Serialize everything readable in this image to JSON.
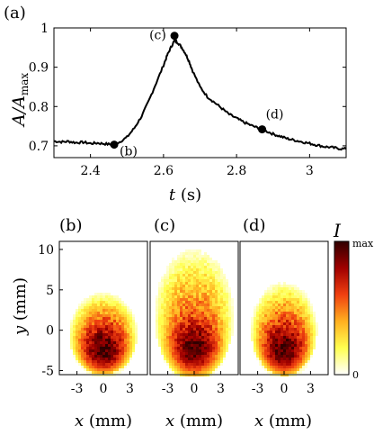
{
  "chart_data": [
    {
      "type": "line",
      "panel_label": "(a)",
      "ylabel": "A/A",
      "ylabel_sub": "max",
      "xlabel_var": "t",
      "xlabel_unit": "(s)",
      "xlim": [
        2.3,
        3.1
      ],
      "ylim": [
        0.67,
        1.0
      ],
      "x_ticks": [
        2.4,
        2.6,
        2.8,
        3.0
      ],
      "x_tick_labels": [
        "2.4",
        "2.6",
        "2.8",
        "3"
      ],
      "y_ticks": [
        0.7,
        0.8,
        0.9,
        1.0
      ],
      "y_tick_labels": [
        "0.7",
        "0.8",
        "0.9",
        "1"
      ],
      "grid": false,
      "series": [
        {
          "x": [
            2.3,
            2.32,
            2.34,
            2.36,
            2.38,
            2.4,
            2.42,
            2.44,
            2.46,
            2.48,
            2.5,
            2.52,
            2.54,
            2.56,
            2.58,
            2.6,
            2.61,
            2.62,
            2.63,
            2.64,
            2.65,
            2.66,
            2.67,
            2.68,
            2.7,
            2.72,
            2.74,
            2.76,
            2.78,
            2.8,
            2.82,
            2.84,
            2.86,
            2.88,
            2.9,
            2.92,
            2.94,
            2.96,
            2.98,
            3.0,
            3.02,
            3.04,
            3.06,
            3.08,
            3.1
          ],
          "values": [
            0.712,
            0.71,
            0.711,
            0.708,
            0.709,
            0.706,
            0.707,
            0.705,
            0.703,
            0.71,
            0.722,
            0.745,
            0.775,
            0.815,
            0.86,
            0.905,
            0.93,
            0.95,
            0.968,
            0.962,
            0.95,
            0.935,
            0.915,
            0.89,
            0.85,
            0.825,
            0.81,
            0.795,
            0.78,
            0.77,
            0.76,
            0.752,
            0.745,
            0.738,
            0.73,
            0.724,
            0.718,
            0.714,
            0.71,
            0.706,
            0.702,
            0.698,
            0.696,
            0.693,
            0.692
          ]
        }
      ],
      "markers": [
        {
          "label": "(b)",
          "x": 2.465,
          "y": 0.703
        },
        {
          "label": "(c)",
          "x": 2.63,
          "y": 0.98
        },
        {
          "label": "(d)",
          "x": 2.87,
          "y": 0.742
        }
      ]
    },
    {
      "type": "heatmap",
      "panel_label": "(b)",
      "xlabel_var": "x",
      "xlabel_unit": "(mm)",
      "ylabel_var": "y",
      "ylabel_unit": "(mm)",
      "xlim": [
        -5,
        5
      ],
      "ylim": [
        -5.5,
        11
      ],
      "x_ticks": [
        -3,
        0,
        3
      ],
      "x_tick_labels": [
        "-3",
        "0",
        "3"
      ],
      "y_ticks": [
        -5,
        0,
        5,
        10
      ],
      "y_tick_labels": [
        "-5",
        "0",
        "5",
        "10"
      ],
      "blob": {
        "center_x": 0,
        "center_y": -0.3,
        "half_width": 3.9,
        "half_height": 5.2,
        "peak_x": 0,
        "peak_y": -3.3,
        "peak_intensity": 0.85
      }
    },
    {
      "type": "heatmap",
      "panel_label": "(c)",
      "xlabel_var": "x",
      "xlabel_unit": "(mm)",
      "xlim": [
        -5,
        5
      ],
      "ylim": [
        -5.5,
        11
      ],
      "x_ticks": [
        -3,
        0,
        3
      ],
      "x_tick_labels": [
        "-3",
        "0",
        "3"
      ],
      "blob": {
        "center_x": 0,
        "center_y": 2.2,
        "half_width": 4.6,
        "half_height": 8.4,
        "peak_x": 0,
        "peak_y": -2.8,
        "peak_intensity": 0.95
      }
    },
    {
      "type": "heatmap",
      "panel_label": "(d)",
      "xlabel_var": "x",
      "xlabel_unit": "(mm)",
      "xlim": [
        -5,
        5
      ],
      "ylim": [
        -5.5,
        11
      ],
      "x_ticks": [
        -3,
        0,
        3
      ],
      "x_tick_labels": [
        "-3",
        "0",
        "3"
      ],
      "blob": {
        "center_x": 0,
        "center_y": 0.3,
        "half_width": 3.8,
        "half_height": 5.9,
        "peak_x": 0,
        "peak_y": -3.3,
        "peak_intensity": 0.9
      }
    }
  ],
  "colorbar": {
    "label": "I",
    "max_label": "max",
    "min_label": "0",
    "colors": [
      "#ffffff",
      "#ffff50",
      "#ffb020",
      "#f04010",
      "#a00000",
      "#300000"
    ]
  }
}
